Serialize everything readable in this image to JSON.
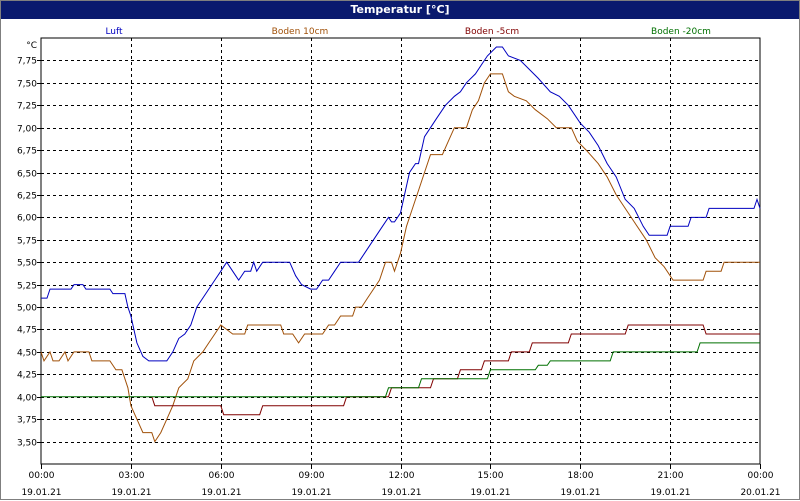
{
  "window": {
    "title": "Temperatur [°C]"
  },
  "chart_data": {
    "type": "line",
    "title": "Temperatur [°C]",
    "ylabel": "°C",
    "xlabel": "",
    "ylim": [
      3.25,
      8.0
    ],
    "yticks": [
      "7,75",
      "7,50",
      "7,25",
      "7,00",
      "6,75",
      "6,50",
      "6,25",
      "6,00",
      "5,75",
      "5,50",
      "5,25",
      "5,00",
      "4,75",
      "4,50",
      "4,25",
      "4,00",
      "3,75",
      "3,50"
    ],
    "xticks": [
      {
        "time": "00:00",
        "date": "19.01.21"
      },
      {
        "time": "03:00",
        "date": "19.01.21"
      },
      {
        "time": "06:00",
        "date": "19.01.21"
      },
      {
        "time": "09:00",
        "date": "19.01.21"
      },
      {
        "time": "12:00",
        "date": "19.01.21"
      },
      {
        "time": "15:00",
        "date": "19.01.21"
      },
      {
        "time": "18:00",
        "date": "19.01.21"
      },
      {
        "time": "21:00",
        "date": "19.01.21"
      },
      {
        "time": "00:00",
        "date": "20.01.21"
      }
    ],
    "xlim": [
      0,
      24
    ],
    "grid": true,
    "legend_position": "top",
    "series": [
      {
        "name": "Luft",
        "color": "#0000c0",
        "points": [
          [
            0,
            5.1
          ],
          [
            0.2,
            5.1
          ],
          [
            0.3,
            5.2
          ],
          [
            1.0,
            5.2
          ],
          [
            1.1,
            5.25
          ],
          [
            1.4,
            5.25
          ],
          [
            1.5,
            5.2
          ],
          [
            2.3,
            5.2
          ],
          [
            2.4,
            5.15
          ],
          [
            2.8,
            5.15
          ],
          [
            2.9,
            5.0
          ],
          [
            3.0,
            4.9
          ],
          [
            3.1,
            4.75
          ],
          [
            3.2,
            4.6
          ],
          [
            3.4,
            4.45
          ],
          [
            3.6,
            4.4
          ],
          [
            4.2,
            4.4
          ],
          [
            4.4,
            4.5
          ],
          [
            4.6,
            4.65
          ],
          [
            4.8,
            4.7
          ],
          [
            5.0,
            4.8
          ],
          [
            5.2,
            5.0
          ],
          [
            5.5,
            5.15
          ],
          [
            5.8,
            5.3
          ],
          [
            6.0,
            5.4
          ],
          [
            6.2,
            5.5
          ],
          [
            6.3,
            5.45
          ],
          [
            6.5,
            5.35
          ],
          [
            6.6,
            5.3
          ],
          [
            6.8,
            5.4
          ],
          [
            7.0,
            5.4
          ],
          [
            7.1,
            5.5
          ],
          [
            7.2,
            5.4
          ],
          [
            7.4,
            5.5
          ],
          [
            8.3,
            5.5
          ],
          [
            8.5,
            5.35
          ],
          [
            8.7,
            5.25
          ],
          [
            9.0,
            5.2
          ],
          [
            9.2,
            5.2
          ],
          [
            9.4,
            5.3
          ],
          [
            9.6,
            5.3
          ],
          [
            9.8,
            5.4
          ],
          [
            10.0,
            5.5
          ],
          [
            10.6,
            5.5
          ],
          [
            10.8,
            5.6
          ],
          [
            11.0,
            5.7
          ],
          [
            11.2,
            5.8
          ],
          [
            11.4,
            5.9
          ],
          [
            11.6,
            6.0
          ],
          [
            11.7,
            5.95
          ],
          [
            11.8,
            5.95
          ],
          [
            12.0,
            6.05
          ],
          [
            12.1,
            6.2
          ],
          [
            12.3,
            6.5
          ],
          [
            12.5,
            6.6
          ],
          [
            12.6,
            6.6
          ],
          [
            12.8,
            6.9
          ],
          [
            13.0,
            7.0
          ],
          [
            13.2,
            7.1
          ],
          [
            13.5,
            7.25
          ],
          [
            13.8,
            7.35
          ],
          [
            14.0,
            7.4
          ],
          [
            14.2,
            7.5
          ],
          [
            14.5,
            7.6
          ],
          [
            14.7,
            7.7
          ],
          [
            14.9,
            7.8
          ],
          [
            15.2,
            7.9
          ],
          [
            15.4,
            7.9
          ],
          [
            15.6,
            7.8
          ],
          [
            16.0,
            7.75
          ],
          [
            16.3,
            7.65
          ],
          [
            16.6,
            7.55
          ],
          [
            17.0,
            7.4
          ],
          [
            17.3,
            7.35
          ],
          [
            17.6,
            7.25
          ],
          [
            18.0,
            7.05
          ],
          [
            18.3,
            6.95
          ],
          [
            18.6,
            6.8
          ],
          [
            18.9,
            6.6
          ],
          [
            19.2,
            6.45
          ],
          [
            19.5,
            6.2
          ],
          [
            19.8,
            6.1
          ],
          [
            20.1,
            5.9
          ],
          [
            20.3,
            5.8
          ],
          [
            20.9,
            5.8
          ],
          [
            21.0,
            5.9
          ],
          [
            21.6,
            5.9
          ],
          [
            21.7,
            6.0
          ],
          [
            22.2,
            6.0
          ],
          [
            22.3,
            6.1
          ],
          [
            23.8,
            6.1
          ],
          [
            23.9,
            6.2
          ],
          [
            24.0,
            6.1
          ]
        ]
      },
      {
        "name": "Boden 10cm",
        "color": "#a05008",
        "points": [
          [
            0,
            4.5
          ],
          [
            0.1,
            4.4
          ],
          [
            0.3,
            4.5
          ],
          [
            0.4,
            4.4
          ],
          [
            0.6,
            4.4
          ],
          [
            0.8,
            4.5
          ],
          [
            0.9,
            4.4
          ],
          [
            1.1,
            4.5
          ],
          [
            1.6,
            4.5
          ],
          [
            1.7,
            4.4
          ],
          [
            2.3,
            4.4
          ],
          [
            2.5,
            4.3
          ],
          [
            2.7,
            4.3
          ],
          [
            2.9,
            4.1
          ],
          [
            3.0,
            3.9
          ],
          [
            3.2,
            3.75
          ],
          [
            3.4,
            3.6
          ],
          [
            3.7,
            3.6
          ],
          [
            3.8,
            3.5
          ],
          [
            4.0,
            3.6
          ],
          [
            4.2,
            3.75
          ],
          [
            4.4,
            3.9
          ],
          [
            4.6,
            4.1
          ],
          [
            4.9,
            4.2
          ],
          [
            5.1,
            4.4
          ],
          [
            5.4,
            4.5
          ],
          [
            5.6,
            4.6
          ],
          [
            5.8,
            4.7
          ],
          [
            6.0,
            4.8
          ],
          [
            6.2,
            4.75
          ],
          [
            6.4,
            4.7
          ],
          [
            6.8,
            4.7
          ],
          [
            6.9,
            4.8
          ],
          [
            8.0,
            4.8
          ],
          [
            8.1,
            4.7
          ],
          [
            8.4,
            4.7
          ],
          [
            8.6,
            4.6
          ],
          [
            8.8,
            4.7
          ],
          [
            9.4,
            4.7
          ],
          [
            9.6,
            4.8
          ],
          [
            9.8,
            4.8
          ],
          [
            10.0,
            4.9
          ],
          [
            10.4,
            4.9
          ],
          [
            10.5,
            5.0
          ],
          [
            10.7,
            5.0
          ],
          [
            10.9,
            5.1
          ],
          [
            11.1,
            5.2
          ],
          [
            11.3,
            5.3
          ],
          [
            11.5,
            5.5
          ],
          [
            11.7,
            5.5
          ],
          [
            11.8,
            5.4
          ],
          [
            12.0,
            5.6
          ],
          [
            12.2,
            5.9
          ],
          [
            12.4,
            6.1
          ],
          [
            12.6,
            6.3
          ],
          [
            12.8,
            6.5
          ],
          [
            13.0,
            6.7
          ],
          [
            13.4,
            6.7
          ],
          [
            13.6,
            6.85
          ],
          [
            13.8,
            7.0
          ],
          [
            14.2,
            7.0
          ],
          [
            14.4,
            7.2
          ],
          [
            14.6,
            7.3
          ],
          [
            14.8,
            7.5
          ],
          [
            15.0,
            7.6
          ],
          [
            15.4,
            7.6
          ],
          [
            15.6,
            7.4
          ],
          [
            15.8,
            7.35
          ],
          [
            16.2,
            7.3
          ],
          [
            16.5,
            7.2
          ],
          [
            16.9,
            7.1
          ],
          [
            17.2,
            7.0
          ],
          [
            17.7,
            7.0
          ],
          [
            17.9,
            6.85
          ],
          [
            18.2,
            6.75
          ],
          [
            18.6,
            6.6
          ],
          [
            18.9,
            6.45
          ],
          [
            19.2,
            6.25
          ],
          [
            19.5,
            6.1
          ],
          [
            19.8,
            5.95
          ],
          [
            20.2,
            5.75
          ],
          [
            20.5,
            5.55
          ],
          [
            20.8,
            5.45
          ],
          [
            21.1,
            5.3
          ],
          [
            22.1,
            5.3
          ],
          [
            22.2,
            5.4
          ],
          [
            22.7,
            5.4
          ],
          [
            22.8,
            5.5
          ],
          [
            24.0,
            5.5
          ]
        ]
      },
      {
        "name": "Boden -5cm",
        "color": "#800000",
        "points": [
          [
            3.7,
            4.0
          ],
          [
            3.8,
            3.9
          ],
          [
            6.0,
            3.9
          ],
          [
            6.1,
            3.8
          ],
          [
            7.3,
            3.8
          ],
          [
            7.4,
            3.9
          ],
          [
            10.1,
            3.9
          ],
          [
            10.2,
            4.0
          ],
          [
            11.6,
            4.0
          ],
          [
            11.7,
            4.1
          ],
          [
            13.0,
            4.1
          ],
          [
            13.1,
            4.2
          ],
          [
            13.9,
            4.2
          ],
          [
            14.0,
            4.3
          ],
          [
            14.7,
            4.3
          ],
          [
            14.8,
            4.4
          ],
          [
            15.6,
            4.4
          ],
          [
            15.7,
            4.5
          ],
          [
            16.3,
            4.5
          ],
          [
            16.4,
            4.6
          ],
          [
            17.6,
            4.6
          ],
          [
            17.7,
            4.7
          ],
          [
            19.5,
            4.7
          ],
          [
            19.6,
            4.8
          ],
          [
            22.1,
            4.8
          ],
          [
            22.2,
            4.7
          ],
          [
            24.0,
            4.7
          ]
        ]
      },
      {
        "name": "Boden -20cm",
        "color": "#007000",
        "points": [
          [
            0,
            4.0
          ],
          [
            11.5,
            4.0
          ],
          [
            11.6,
            4.1
          ],
          [
            12.6,
            4.1
          ],
          [
            12.7,
            4.2
          ],
          [
            14.9,
            4.2
          ],
          [
            15.0,
            4.3
          ],
          [
            16.5,
            4.3
          ],
          [
            16.6,
            4.35
          ],
          [
            16.9,
            4.35
          ],
          [
            17.0,
            4.4
          ],
          [
            19.0,
            4.4
          ],
          [
            19.1,
            4.5
          ],
          [
            21.9,
            4.5
          ],
          [
            22.0,
            4.6
          ],
          [
            24.0,
            4.6
          ]
        ]
      }
    ]
  }
}
